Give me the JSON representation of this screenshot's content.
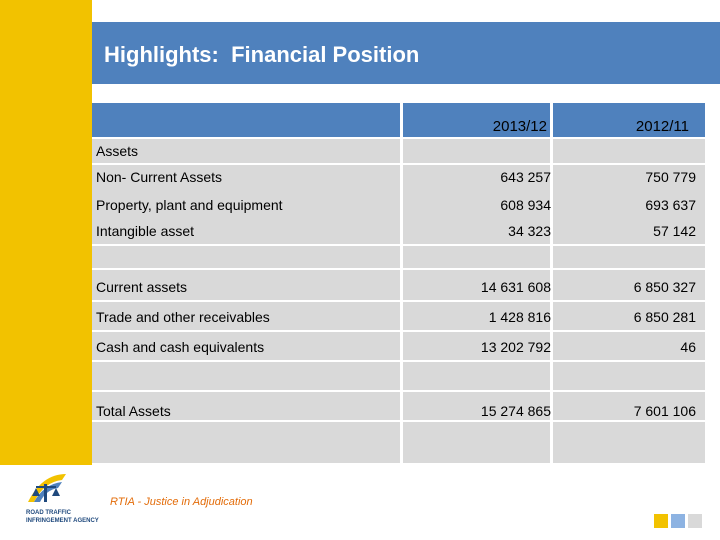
{
  "slide": {
    "title": "Highlights:  Financial Position",
    "footer": "RTIA - Justice in Adjudication",
    "logo_text_line1": "ROAD TRAFFIC",
    "logo_text_line2": "INFRINGEMENT AGENCY"
  },
  "table": {
    "columns": [
      "2013/12",
      "2012/11"
    ],
    "rows": [
      {
        "label": "Assets",
        "v1": "",
        "v2": ""
      },
      {
        "label": "Non- Current Assets",
        "v1": "643 257",
        "v2": "750 779"
      },
      {
        "label": "Property, plant and equipment",
        "v1": "608 934",
        "v2": "693 637"
      },
      {
        "label": "Intangible asset",
        "v1": "34 323",
        "v2": "57 142"
      },
      {
        "label": "Current assets",
        "v1": "14 631 608",
        "v2": "6 850 327"
      },
      {
        "label": "Trade and other receivables",
        "v1": "1 428 816",
        "v2": "6 850 281"
      },
      {
        "label": "Cash and cash equivalents",
        "v1": "13 202 792",
        "v2": "46"
      },
      {
        "label": "Total Assets",
        "v1": "15 274 865",
        "v2": "7 601 106"
      }
    ]
  },
  "colors": {
    "accent_blue": "#4f81bd",
    "accent_yellow": "#f2c200",
    "footer_orange": "#e36c09",
    "square_yellow": "#f2c200",
    "square_lightblue": "#8db3e2",
    "square_grey": "#d9d9d9"
  }
}
